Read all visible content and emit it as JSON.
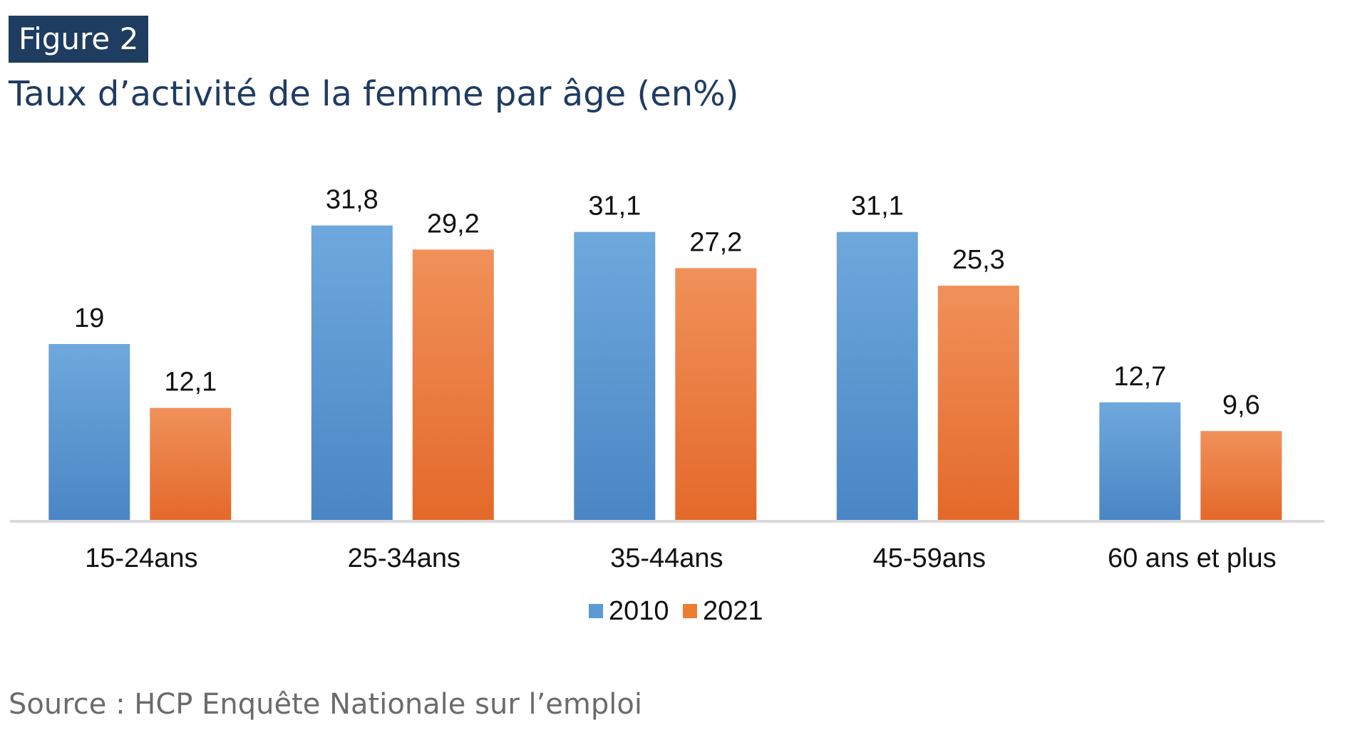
{
  "figure_label": "Figure 2",
  "source": "Source : HCP Enquête Nationale sur l’emploi",
  "colors": {
    "badge_bg": "#1f3c61",
    "title": "#1f3c61",
    "series_2010": "#5b9bd5",
    "series_2021": "#ed7d31",
    "axis": "#d9d9d9"
  },
  "chart_data": {
    "type": "bar",
    "title": "Taux d’activité de la femme par âge (en%)",
    "xlabel": "",
    "ylabel": "",
    "categories": [
      "15-24ans",
      "25-34ans",
      "35-44ans",
      "45-59ans",
      "60 ans et plus"
    ],
    "series": [
      {
        "name": "2010",
        "values": [
          19,
          31.8,
          31.1,
          31.1,
          12.7
        ],
        "labels": [
          "19",
          "31,8",
          "31,1",
          "31,1",
          "12,7"
        ]
      },
      {
        "name": "2021",
        "values": [
          12.1,
          29.2,
          27.2,
          25.3,
          9.6
        ],
        "labels": [
          "12,1",
          "29,2",
          "27,2",
          "25,3",
          "9,6"
        ]
      }
    ],
    "ylim": [
      0,
      35
    ],
    "grid": false,
    "legend": "bottom-center"
  }
}
